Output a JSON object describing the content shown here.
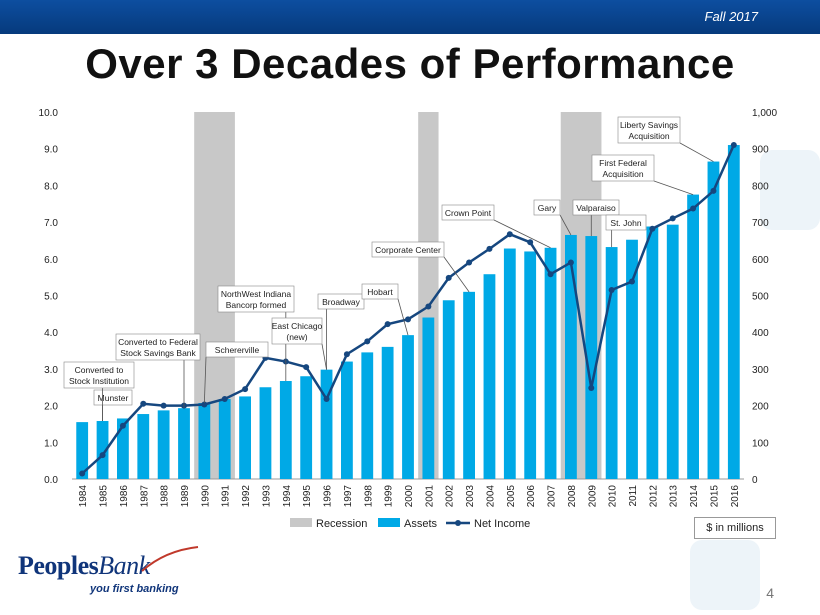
{
  "header": {
    "season": "Fall 2017",
    "title": "Over 3 Decades of Performance"
  },
  "footer": {
    "units_note": "$ in millions",
    "page_number": "4",
    "logo_text_1": "Peoples",
    "logo_text_2": "Bank",
    "tagline": "you first banking"
  },
  "colors": {
    "header_bar": "#0b4a99",
    "assets": "#00a9e6",
    "net_income": "#16477f",
    "recession": "#c8c8c8"
  },
  "chart_data": {
    "type": "bar",
    "title": "",
    "categories": [
      "1984",
      "1985",
      "1986",
      "1987",
      "1988",
      "1989",
      "1990",
      "1991",
      "1992",
      "1993",
      "1994",
      "1995",
      "1996",
      "1997",
      "1998",
      "1999",
      "2000",
      "2001",
      "2002",
      "2003",
      "2004",
      "2005",
      "2006",
      "2007",
      "2008",
      "2009",
      "2010",
      "2011",
      "2012",
      "2013",
      "2014",
      "2015",
      "2016"
    ],
    "series": [
      {
        "name": "Assets",
        "type": "bar",
        "axis": "left",
        "values": [
          1.55,
          1.58,
          1.65,
          1.77,
          1.87,
          1.93,
          2.07,
          2.18,
          2.25,
          2.5,
          2.67,
          2.8,
          2.98,
          3.2,
          3.45,
          3.6,
          3.92,
          4.4,
          4.87,
          5.1,
          5.58,
          6.28,
          6.2,
          6.3,
          6.65,
          6.62,
          6.32,
          6.52,
          6.88,
          6.93,
          7.75,
          8.65,
          9.1
        ]
      },
      {
        "name": "Net Income",
        "type": "line",
        "axis": "right",
        "values": [
          15,
          65,
          145,
          205,
          200,
          200,
          203,
          218,
          245,
          330,
          320,
          305,
          218,
          340,
          375,
          422,
          435,
          470,
          548,
          590,
          627,
          667,
          645,
          558,
          590,
          248,
          515,
          538,
          682,
          710,
          737,
          785,
          910
        ]
      },
      {
        "name": "Recession",
        "type": "band",
        "ranges": [
          [
            "1989.5",
            "1991.5"
          ],
          [
            "2000.5",
            "2001.5"
          ],
          [
            "2007.5",
            "2009.5"
          ]
        ]
      }
    ],
    "left_axis": {
      "range": [
        0,
        10
      ],
      "ticks": [
        "0.0",
        "1.0",
        "2.0",
        "3.0",
        "4.0",
        "5.0",
        "6.0",
        "7.0",
        "8.0",
        "9.0",
        "10.0"
      ]
    },
    "right_axis": {
      "range": [
        0,
        1000
      ],
      "ticks": [
        "0",
        "100",
        "200",
        "300",
        "400",
        "500",
        "600",
        "700",
        "800",
        "900",
        "1,000"
      ]
    },
    "legend": {
      "placement": "bottom",
      "items": [
        "Recession",
        "Assets",
        "Net Income"
      ]
    },
    "annotations": [
      {
        "text": [
          "Munster"
        ],
        "year": "1985",
        "value": 1.58
      },
      {
        "text": [
          "Converted to",
          "Stock Institution"
        ],
        "year": "1985",
        "value": 1.58
      },
      {
        "text": [
          "Converted to Federal",
          "Stock Savings Bank"
        ],
        "year": "1989",
        "value": 1.93
      },
      {
        "text": [
          "Schererville"
        ],
        "year": "1990",
        "value": 2.07
      },
      {
        "text": [
          "NorthWest Indiana",
          "Bancorp formed"
        ],
        "year": "1994",
        "value": 2.67
      },
      {
        "text": [
          "East Chicago",
          "(new)"
        ],
        "year": "1996",
        "value": 2.98
      },
      {
        "text": [
          "Broadway"
        ],
        "year": "1996",
        "value": 2.98
      },
      {
        "text": [
          "Hobart"
        ],
        "year": "2000",
        "value": 3.92
      },
      {
        "text": [
          "Corporate Center"
        ],
        "year": "2003",
        "value": 5.1
      },
      {
        "text": [
          "Crown Point"
        ],
        "year": "2007",
        "value": 6.3
      },
      {
        "text": [
          "Gary"
        ],
        "year": "2008",
        "value": 6.65
      },
      {
        "text": [
          "Valparaiso"
        ],
        "year": "2009",
        "value": 6.62
      },
      {
        "text": [
          "St. John"
        ],
        "year": "2010",
        "value": 6.32
      },
      {
        "text": [
          "First Federal",
          "Acquisition"
        ],
        "year": "2014",
        "value": 7.75
      },
      {
        "text": [
          "Liberty Savings",
          "Acquisition"
        ],
        "year": "2015",
        "value": 8.65
      }
    ]
  }
}
